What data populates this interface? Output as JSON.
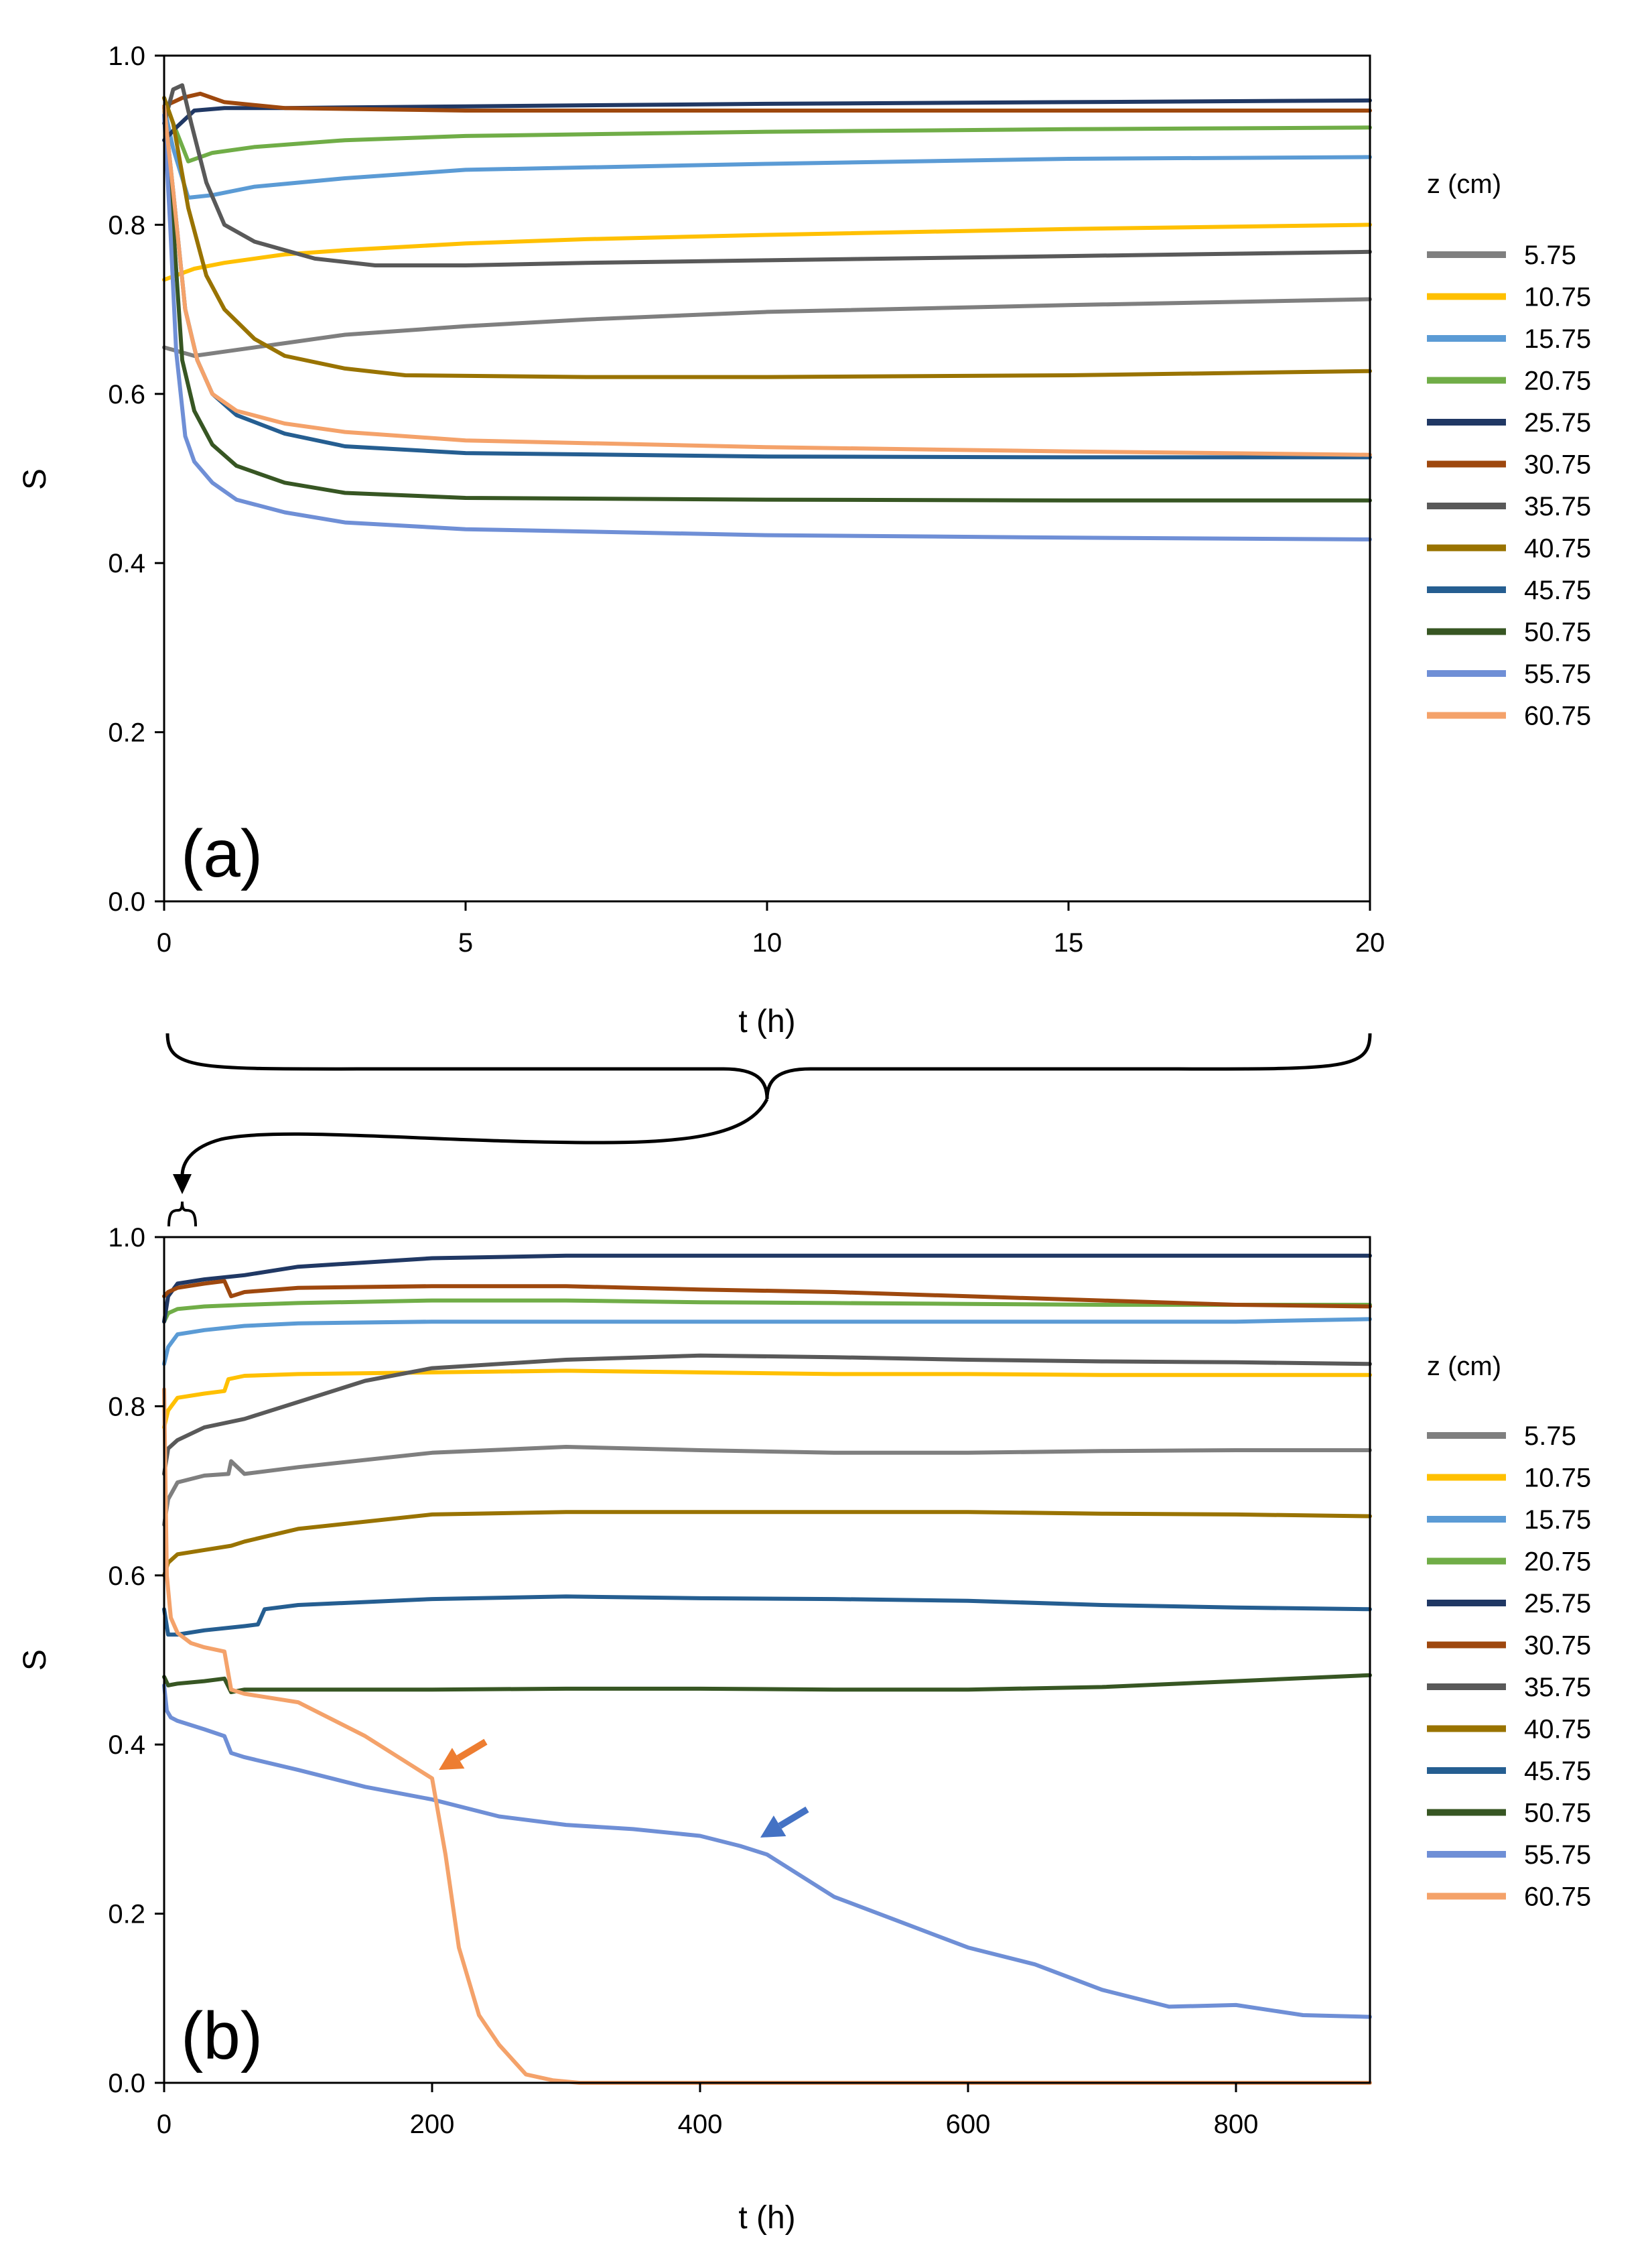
{
  "figure": {
    "legend_title": "z (cm)"
  },
  "chart_data": [
    {
      "type": "line",
      "panel_label": "(a)",
      "xlabel": "t (h)",
      "ylabel": "S",
      "xlim": [
        0,
        20
      ],
      "ylim": [
        0,
        1.0
      ],
      "xticks": [
        "0",
        "5",
        "10",
        "15",
        "20"
      ],
      "yticks": [
        "0.0",
        "0.2",
        "0.4",
        "0.6",
        "0.8",
        "1.0"
      ],
      "grid": false,
      "legend_position": "right",
      "legend_title": "z (cm)",
      "series": [
        {
          "name": "5.75",
          "color": "#7f7f7f",
          "x": [
            0,
            0.5,
            1,
            2,
            3,
            5,
            7,
            10,
            15,
            20
          ],
          "y": [
            0.655,
            0.645,
            0.65,
            0.66,
            0.67,
            0.68,
            0.688,
            0.697,
            0.705,
            0.712
          ]
        },
        {
          "name": "10.75",
          "color": "#ffc000",
          "x": [
            0,
            0.5,
            1,
            2,
            3,
            5,
            7,
            10,
            15,
            20
          ],
          "y": [
            0.735,
            0.748,
            0.755,
            0.765,
            0.77,
            0.778,
            0.783,
            0.788,
            0.795,
            0.8
          ]
        },
        {
          "name": "15.75",
          "color": "#5b9bd5",
          "x": [
            0,
            0.15,
            0.4,
            0.8,
            1.5,
            3,
            5,
            10,
            15,
            20
          ],
          "y": [
            0.94,
            0.89,
            0.832,
            0.835,
            0.845,
            0.855,
            0.865,
            0.872,
            0.878,
            0.88
          ]
        },
        {
          "name": "20.75",
          "color": "#70ad47",
          "x": [
            0,
            0.15,
            0.4,
            0.8,
            1.5,
            3,
            5,
            10,
            15,
            20
          ],
          "y": [
            0.95,
            0.92,
            0.875,
            0.885,
            0.892,
            0.9,
            0.905,
            0.91,
            0.913,
            0.915
          ]
        },
        {
          "name": "25.75",
          "color": "#203864",
          "x": [
            0,
            0.2,
            0.5,
            1,
            2,
            5,
            10,
            15,
            20
          ],
          "y": [
            0.9,
            0.915,
            0.935,
            0.938,
            0.938,
            0.94,
            0.943,
            0.945,
            0.947
          ]
        },
        {
          "name": "30.75",
          "color": "#9e480e",
          "x": [
            0,
            0.3,
            0.6,
            1,
            2,
            5,
            10,
            15,
            20
          ],
          "y": [
            0.94,
            0.95,
            0.955,
            0.945,
            0.938,
            0.935,
            0.935,
            0.935,
            0.935
          ]
        },
        {
          "name": "35.75",
          "color": "#595959",
          "x": [
            0,
            0.15,
            0.3,
            0.45,
            0.7,
            1,
            1.5,
            2.5,
            3.5,
            5,
            7,
            10,
            15,
            20
          ],
          "y": [
            0.92,
            0.96,
            0.965,
            0.92,
            0.85,
            0.8,
            0.78,
            0.76,
            0.752,
            0.752,
            0.755,
            0.758,
            0.763,
            0.768
          ]
        },
        {
          "name": "40.75",
          "color": "#997300",
          "x": [
            0,
            0.15,
            0.4,
            0.7,
            1,
            1.5,
            2,
            3,
            4,
            7,
            10,
            15,
            20
          ],
          "y": [
            0.95,
            0.92,
            0.82,
            0.74,
            0.7,
            0.665,
            0.645,
            0.63,
            0.622,
            0.62,
            0.62,
            0.622,
            0.627
          ]
        },
        {
          "name": "45.75",
          "color": "#255e91",
          "x": [
            0,
            0.15,
            0.35,
            0.55,
            0.8,
            1.2,
            2,
            3,
            5,
            10,
            15,
            20
          ],
          "y": [
            0.94,
            0.84,
            0.7,
            0.64,
            0.6,
            0.575,
            0.553,
            0.538,
            0.53,
            0.526,
            0.525,
            0.525
          ]
        },
        {
          "name": "50.75",
          "color": "#375623",
          "x": [
            0,
            0.15,
            0.3,
            0.5,
            0.8,
            1.2,
            2,
            3,
            5,
            10,
            15,
            20
          ],
          "y": [
            0.94,
            0.8,
            0.64,
            0.58,
            0.54,
            0.515,
            0.495,
            0.483,
            0.477,
            0.475,
            0.474,
            0.474
          ]
        },
        {
          "name": "55.75",
          "color": "#6f8fd6",
          "x": [
            0,
            0.1,
            0.2,
            0.35,
            0.5,
            0.8,
            1.2,
            2,
            3,
            5,
            10,
            15,
            20
          ],
          "y": [
            0.93,
            0.8,
            0.65,
            0.55,
            0.52,
            0.495,
            0.475,
            0.46,
            0.448,
            0.44,
            0.433,
            0.43,
            0.428
          ]
        },
        {
          "name": "60.75",
          "color": "#f4a26a",
          "x": [
            0,
            0.15,
            0.35,
            0.55,
            0.8,
            1.2,
            2,
            3,
            5,
            10,
            15,
            20
          ],
          "y": [
            0.94,
            0.84,
            0.7,
            0.64,
            0.6,
            0.58,
            0.565,
            0.555,
            0.545,
            0.537,
            0.532,
            0.528
          ]
        }
      ]
    },
    {
      "type": "line",
      "panel_label": "(b)",
      "xlabel": "t (h)",
      "ylabel": "S",
      "xlim": [
        0,
        900
      ],
      "ylim": [
        0,
        1.0
      ],
      "xticks": [
        "0",
        "200",
        "400",
        "600",
        "800"
      ],
      "yticks": [
        "0.0",
        "0.2",
        "0.4",
        "0.6",
        "0.8",
        "1.0"
      ],
      "grid": false,
      "legend_position": "right",
      "legend_title": "z (cm)",
      "annotations": [
        {
          "type": "arrow",
          "color": "#ed7d31",
          "points_to": [
            205,
            0.37
          ]
        },
        {
          "type": "arrow",
          "color": "#4472c4",
          "points_to": [
            445,
            0.29
          ]
        }
      ],
      "series": [
        {
          "name": "5.75",
          "color": "#7f7f7f",
          "x": [
            0,
            3,
            10,
            30,
            48,
            50,
            60,
            100,
            200,
            300,
            400,
            500,
            600,
            700,
            800,
            900
          ],
          "y": [
            0.66,
            0.69,
            0.71,
            0.718,
            0.72,
            0.735,
            0.72,
            0.728,
            0.745,
            0.752,
            0.748,
            0.745,
            0.745,
            0.747,
            0.748,
            0.748
          ]
        },
        {
          "name": "10.75",
          "color": "#ffc000",
          "x": [
            0,
            3,
            10,
            30,
            45,
            48,
            60,
            100,
            200,
            300,
            400,
            500,
            600,
            700,
            800,
            900
          ],
          "y": [
            0.775,
            0.795,
            0.81,
            0.815,
            0.818,
            0.832,
            0.836,
            0.838,
            0.84,
            0.842,
            0.84,
            0.838,
            0.838,
            0.837,
            0.837,
            0.837
          ]
        },
        {
          "name": "15.75",
          "color": "#5b9bd5",
          "x": [
            0,
            3,
            10,
            30,
            60,
            100,
            200,
            300,
            400,
            500,
            600,
            700,
            800,
            900
          ],
          "y": [
            0.85,
            0.87,
            0.885,
            0.89,
            0.895,
            0.898,
            0.9,
            0.9,
            0.9,
            0.9,
            0.9,
            0.9,
            0.9,
            0.903
          ]
        },
        {
          "name": "20.75",
          "color": "#70ad47",
          "x": [
            0,
            3,
            10,
            30,
            60,
            100,
            200,
            300,
            400,
            500,
            600,
            700,
            800,
            900
          ],
          "y": [
            0.9,
            0.91,
            0.915,
            0.918,
            0.92,
            0.922,
            0.925,
            0.925,
            0.923,
            0.922,
            0.921,
            0.92,
            0.92,
            0.92
          ]
        },
        {
          "name": "25.75",
          "color": "#203864",
          "x": [
            0,
            3,
            10,
            30,
            60,
            100,
            200,
            300,
            400,
            500,
            600,
            700,
            800,
            900
          ],
          "y": [
            0.9,
            0.93,
            0.945,
            0.95,
            0.955,
            0.965,
            0.975,
            0.978,
            0.978,
            0.978,
            0.978,
            0.978,
            0.978,
            0.978
          ]
        },
        {
          "name": "30.75",
          "color": "#9e480e",
          "x": [
            0,
            3,
            10,
            30,
            45,
            50,
            60,
            100,
            200,
            300,
            400,
            500,
            600,
            700,
            800,
            900
          ],
          "y": [
            0.93,
            0.935,
            0.94,
            0.945,
            0.948,
            0.93,
            0.935,
            0.94,
            0.942,
            0.942,
            0.938,
            0.935,
            0.93,
            0.925,
            0.92,
            0.918
          ]
        },
        {
          "name": "35.75",
          "color": "#595959",
          "x": [
            0,
            3,
            10,
            30,
            60,
            100,
            150,
            200,
            300,
            400,
            500,
            600,
            700,
            800,
            900
          ],
          "y": [
            0.72,
            0.75,
            0.76,
            0.775,
            0.785,
            0.805,
            0.83,
            0.845,
            0.855,
            0.86,
            0.858,
            0.855,
            0.853,
            0.852,
            0.85
          ]
        },
        {
          "name": "40.75",
          "color": "#997300",
          "x": [
            0,
            3,
            10,
            30,
            50,
            60,
            100,
            200,
            300,
            400,
            500,
            600,
            700,
            800,
            900
          ],
          "y": [
            0.6,
            0.615,
            0.625,
            0.63,
            0.635,
            0.64,
            0.655,
            0.672,
            0.675,
            0.675,
            0.675,
            0.675,
            0.673,
            0.672,
            0.67
          ]
        },
        {
          "name": "45.75",
          "color": "#255e91",
          "x": [
            0,
            3,
            10,
            30,
            60,
            70,
            75,
            100,
            200,
            300,
            400,
            500,
            600,
            700,
            800,
            900
          ],
          "y": [
            0.56,
            0.53,
            0.53,
            0.535,
            0.54,
            0.542,
            0.56,
            0.565,
            0.572,
            0.575,
            0.573,
            0.572,
            0.57,
            0.565,
            0.562,
            0.56
          ]
        },
        {
          "name": "50.75",
          "color": "#375623",
          "x": [
            0,
            3,
            10,
            30,
            45,
            50,
            60,
            100,
            200,
            300,
            400,
            500,
            600,
            700,
            800,
            900
          ],
          "y": [
            0.48,
            0.47,
            0.472,
            0.475,
            0.478,
            0.462,
            0.465,
            0.465,
            0.465,
            0.466,
            0.466,
            0.465,
            0.465,
            0.468,
            0.475,
            0.482
          ]
        },
        {
          "name": "55.75",
          "color": "#6f8fd6",
          "x": [
            0,
            2,
            5,
            10,
            30,
            45,
            50,
            60,
            100,
            150,
            200,
            250,
            300,
            350,
            400,
            430,
            450,
            500,
            550,
            600,
            650,
            700,
            750,
            800,
            850,
            900
          ],
          "y": [
            0.47,
            0.44,
            0.432,
            0.428,
            0.418,
            0.41,
            0.39,
            0.385,
            0.37,
            0.35,
            0.335,
            0.315,
            0.305,
            0.3,
            0.292,
            0.28,
            0.27,
            0.22,
            0.19,
            0.16,
            0.14,
            0.11,
            0.09,
            0.092,
            0.08,
            0.078
          ]
        },
        {
          "name": "60.75",
          "color": "#f4a26a",
          "x": [
            0,
            2,
            5,
            10,
            20,
            30,
            45,
            50,
            60,
            100,
            150,
            190,
            200,
            210,
            220,
            235,
            250,
            270,
            290,
            310,
            400,
            600,
            800,
            900
          ],
          "y": [
            0.82,
            0.6,
            0.55,
            0.532,
            0.52,
            0.515,
            0.51,
            0.465,
            0.46,
            0.45,
            0.41,
            0.37,
            0.36,
            0.27,
            0.16,
            0.08,
            0.045,
            0.01,
            0.003,
            0.0,
            0.0,
            0.0,
            0.0,
            0.0
          ]
        }
      ]
    }
  ]
}
